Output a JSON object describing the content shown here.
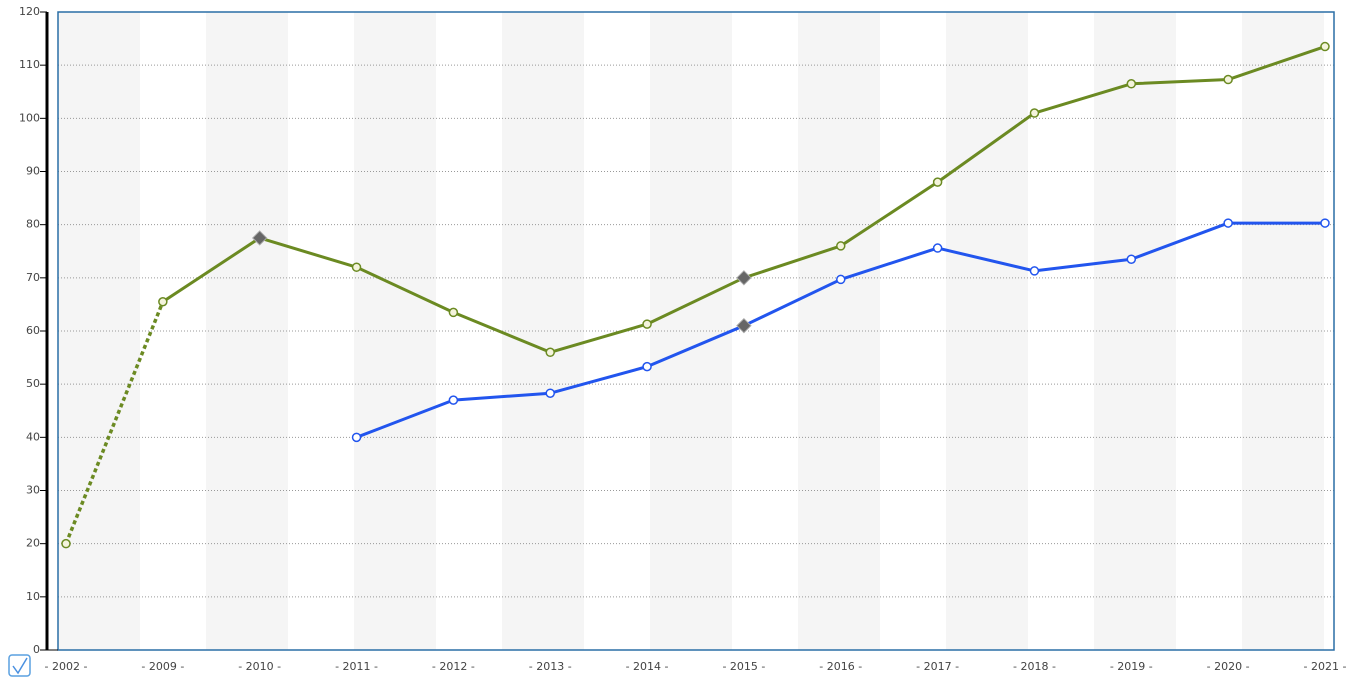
{
  "chart_data": {
    "type": "line",
    "categories": [
      "- 2002 -",
      "- 2009 -",
      "- 2010 -",
      "- 2011 -",
      "- 2012 -",
      "- 2013 -",
      "- 2014 -",
      "- 2015 -",
      "- 2016 -",
      "- 2017 -",
      "- 2018 -",
      "- 2019 -",
      "- 2020 -",
      "- 2021 -"
    ],
    "series": [
      {
        "color": "#6b8a22",
        "marker_fill": "#f4f4dc",
        "dashed_first_segment": true,
        "diamond_markers": [
          2,
          7
        ],
        "values": [
          20,
          65.5,
          77.5,
          72,
          63.5,
          56,
          61.3,
          70,
          76,
          88,
          101,
          106.5,
          107.3,
          113.5
        ]
      },
      {
        "color": "#2255ee",
        "marker_fill": "#ffffff",
        "diamond_markers": [
          7
        ],
        "values": [
          null,
          null,
          null,
          40,
          47,
          48.3,
          53.3,
          61,
          69.7,
          75.6,
          71.3,
          73.5,
          80.3,
          80.3
        ]
      }
    ],
    "ylim": [
      0,
      120
    ],
    "yticks": [
      0,
      10,
      20,
      30,
      40,
      50,
      60,
      70,
      80,
      90,
      100,
      110,
      120
    ],
    "grid": true
  }
}
